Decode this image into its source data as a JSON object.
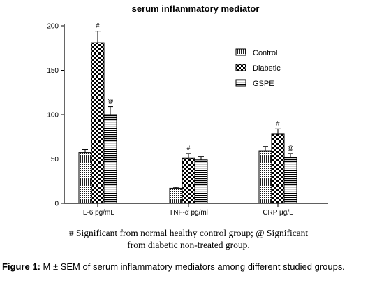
{
  "chart_data": {
    "type": "bar",
    "title": "serum inflammatory mediator",
    "categories": [
      "IL-6 pg/mL",
      "TNF-α pg/ml",
      "CRP µg/L"
    ],
    "series": [
      {
        "name": "Control",
        "values": [
          57,
          17,
          59
        ],
        "errors": [
          4,
          1,
          5
        ]
      },
      {
        "name": "Diabetic",
        "values": [
          181,
          51,
          78
        ],
        "errors": [
          13,
          5,
          6
        ]
      },
      {
        "name": "GSPE",
        "values": [
          100,
          49,
          52
        ],
        "errors": [
          9,
          4,
          4
        ]
      }
    ],
    "annotations": [
      {
        "category": 0,
        "series": 1,
        "mark": "#"
      },
      {
        "category": 0,
        "series": 2,
        "mark": "@"
      },
      {
        "category": 1,
        "series": 1,
        "mark": "#"
      },
      {
        "category": 2,
        "series": 1,
        "mark": "#"
      },
      {
        "category": 2,
        "series": 2,
        "mark": "@"
      }
    ],
    "yticks": [
      0,
      50,
      100,
      150,
      200
    ],
    "ylim": [
      0,
      200
    ],
    "legend_position": "top-right",
    "grid": false,
    "patterns": [
      "dots",
      "checker",
      "hlines"
    ]
  },
  "footnote": {
    "line1": "# Significant from normal healthy control group; @ Significant",
    "line2": "from diabetic non-treated group."
  },
  "caption": {
    "label": "Figure 1:",
    "text": " M ± SEM of serum inflammatory mediators among different studied groups."
  }
}
